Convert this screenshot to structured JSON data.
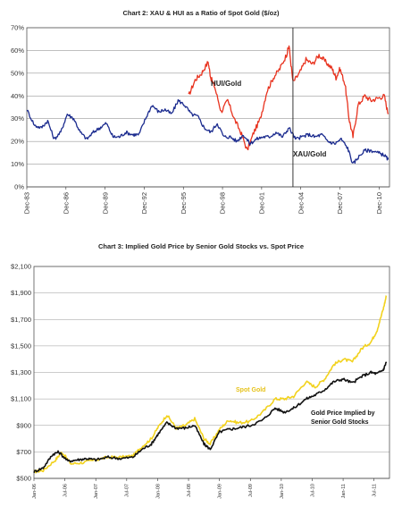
{
  "chart_data": [
    {
      "type": "line",
      "title": "Chart 2: XAU & HUI as a Ratio of Spot Gold ($/oz)",
      "xlabel": "",
      "ylabel": "",
      "ylim": [
        0,
        70
      ],
      "yticks": [
        "0%",
        "10%",
        "20%",
        "30%",
        "40%",
        "50%",
        "60%",
        "70%"
      ],
      "ytick_values": [
        0,
        10,
        20,
        30,
        40,
        50,
        60,
        70
      ],
      "xlim": [
        1983.9,
        2011.7
      ],
      "xticks": [
        "Dec-83",
        "Dec-86",
        "Dec-89",
        "Dec-92",
        "Dec-95",
        "Dec-98",
        "Dec-01",
        "Dec-04",
        "Dec-07",
        "Dec-10"
      ],
      "xtick_values": [
        1983.9,
        1986.9,
        1989.9,
        1992.9,
        1995.9,
        1998.9,
        2001.9,
        2004.9,
        2007.9,
        2010.9
      ],
      "grid": "horizontal",
      "vertical_marker_x": 2004.3,
      "series": [
        {
          "name": "HUI/Gold",
          "color": "#e8321e",
          "x": [
            1996.3,
            1996.8,
            1997.3,
            1997.8,
            1998.0,
            1998.3,
            1998.8,
            1999.3,
            1999.8,
            2000.3,
            2000.8,
            2001.3,
            2001.8,
            2002.3,
            2002.8,
            2003.3,
            2003.8,
            2004.0,
            2004.3,
            2004.8,
            2005.3,
            2005.8,
            2006.3,
            2006.8,
            2007.3,
            2007.6,
            2007.9,
            2008.3,
            2008.6,
            2008.9,
            2009.3,
            2009.8,
            2010.3,
            2010.8,
            2011.3,
            2011.6
          ],
          "values": [
            40,
            47,
            50,
            55,
            48,
            44,
            33,
            38,
            30,
            24,
            16,
            24,
            30,
            42,
            48,
            52,
            58,
            62,
            46,
            50,
            56,
            54,
            58,
            55,
            52,
            48,
            52,
            45,
            30,
            22,
            36,
            40,
            38,
            39,
            40,
            32
          ]
        },
        {
          "name": "XAU/Gold",
          "color": "#1a2a8e",
          "x": [
            1983.9,
            1984.5,
            1985.0,
            1985.5,
            1986.0,
            1986.5,
            1987.0,
            1987.5,
            1988.0,
            1988.5,
            1989.0,
            1989.5,
            1990.0,
            1990.5,
            1991.0,
            1991.5,
            1992.0,
            1992.5,
            1993.0,
            1993.5,
            1994.0,
            1994.5,
            1995.0,
            1995.5,
            1996.0,
            1996.5,
            1997.0,
            1997.5,
            1998.0,
            1998.5,
            1999.0,
            1999.5,
            2000.0,
            2000.5,
            2001.0,
            2001.5,
            2002.0,
            2002.5,
            2003.0,
            2003.5,
            2004.0,
            2004.5,
            2005.0,
            2005.5,
            2006.0,
            2006.5,
            2007.0,
            2007.5,
            2008.0,
            2008.5,
            2008.9,
            2009.3,
            2009.8,
            2010.3,
            2010.8,
            2011.3,
            2011.6
          ],
          "values": [
            34,
            27,
            26,
            29,
            21,
            24,
            32,
            30,
            24,
            21,
            24,
            26,
            28,
            22,
            22,
            24,
            23,
            23,
            30,
            36,
            33,
            34,
            32,
            38,
            36,
            32,
            31,
            26,
            24,
            28,
            22,
            22,
            20,
            23,
            19,
            21,
            22,
            22,
            24,
            22,
            26,
            21,
            22,
            23,
            22,
            23,
            20,
            19,
            21,
            17,
            10,
            13,
            16,
            16,
            15,
            14,
            12
          ]
        }
      ],
      "annotations": [
        "HUI/Gold",
        "XAU/Gold"
      ]
    },
    {
      "type": "line",
      "title": "Chart 3: Implied Gold Price by Senior Gold Stocks vs. Spot Price",
      "xlabel": "",
      "ylabel": "",
      "ylim": [
        500,
        2100
      ],
      "yticks": [
        "$500",
        "$700",
        "$900",
        "$1,100",
        "$1,300",
        "$1,500",
        "$1,700",
        "$1,900",
        "$2,100"
      ],
      "ytick_values": [
        500,
        700,
        900,
        1100,
        1300,
        1500,
        1700,
        1900,
        2100
      ],
      "xlim": [
        2006.0,
        2011.75
      ],
      "xticks": [
        "Jan-06",
        "Jul-06",
        "Jan-07",
        "Jul-07",
        "Jan-08",
        "Jul-08",
        "Jan-09",
        "Jul-09",
        "Jan-10",
        "Jul-10",
        "Jan-11",
        "Jul-11"
      ],
      "xtick_values": [
        2006.0,
        2006.5,
        2007.0,
        2007.5,
        2008.0,
        2008.5,
        2009.0,
        2009.5,
        2010.0,
        2010.5,
        2011.0,
        2011.5
      ],
      "grid": "horizontal",
      "series": [
        {
          "name": "Spot Gold",
          "color": "#f2d21e",
          "x": [
            2006.0,
            2006.15,
            2006.35,
            2006.45,
            2006.6,
            2006.8,
            2007.0,
            2007.2,
            2007.4,
            2007.6,
            2007.75,
            2007.9,
            2008.0,
            2008.15,
            2008.3,
            2008.45,
            2008.6,
            2008.75,
            2008.85,
            2009.0,
            2009.15,
            2009.3,
            2009.5,
            2009.7,
            2009.9,
            2010.05,
            2010.2,
            2010.4,
            2010.55,
            2010.7,
            2010.85,
            2011.0,
            2011.15,
            2011.3,
            2011.45,
            2011.55,
            2011.65,
            2011.7
          ],
          "values": [
            550,
            560,
            640,
            700,
            610,
            620,
            640,
            660,
            660,
            670,
            740,
            800,
            880,
            980,
            880,
            900,
            950,
            800,
            760,
            870,
            940,
            920,
            930,
            1000,
            1100,
            1100,
            1120,
            1230,
            1190,
            1250,
            1360,
            1400,
            1380,
            1480,
            1530,
            1620,
            1780,
            1880
          ]
        },
        {
          "name": "Gold Price Implied by Senior Gold Stocks",
          "color": "#111111",
          "x": [
            2006.0,
            2006.15,
            2006.3,
            2006.4,
            2006.55,
            2006.7,
            2006.85,
            2007.0,
            2007.2,
            2007.4,
            2007.6,
            2007.75,
            2007.9,
            2008.0,
            2008.15,
            2008.3,
            2008.45,
            2008.6,
            2008.75,
            2008.85,
            2009.0,
            2009.15,
            2009.3,
            2009.5,
            2009.7,
            2009.9,
            2010.05,
            2010.2,
            2010.4,
            2010.55,
            2010.7,
            2010.85,
            2011.0,
            2011.15,
            2011.3,
            2011.45,
            2011.55,
            2011.65,
            2011.7
          ],
          "values": [
            550,
            580,
            680,
            700,
            630,
            640,
            650,
            640,
            660,
            650,
            660,
            720,
            760,
            830,
            920,
            880,
            880,
            900,
            760,
            720,
            850,
            870,
            880,
            900,
            940,
            1030,
            1000,
            1030,
            1100,
            1130,
            1170,
            1230,
            1250,
            1220,
            1270,
            1300,
            1290,
            1320,
            1380
          ]
        }
      ],
      "annotations": [
        "Spot Gold",
        "Gold Price Implied by",
        "Senior Gold Stocks"
      ]
    }
  ]
}
